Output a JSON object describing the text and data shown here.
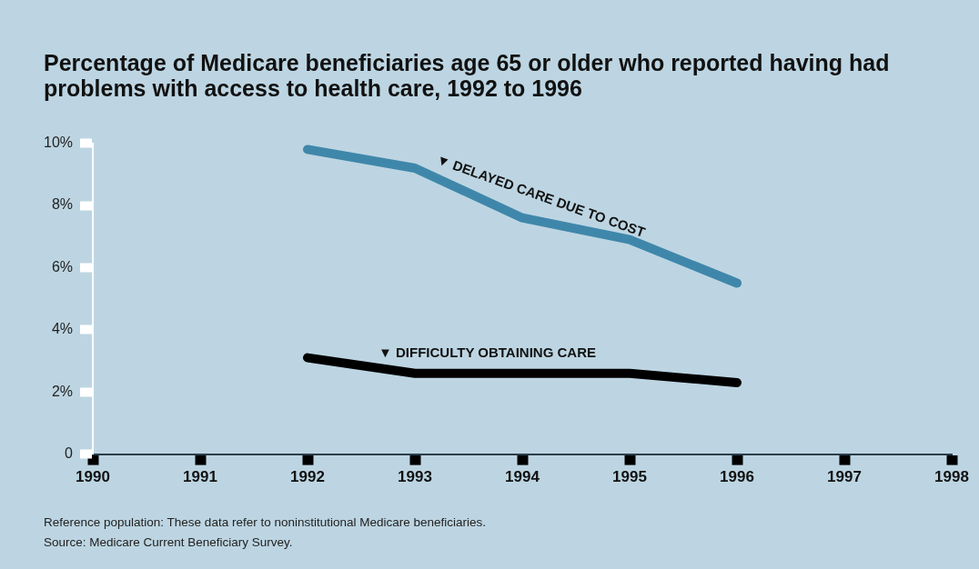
{
  "chart_data": {
    "type": "line",
    "title": "Percentage of Medicare beneficiaries age 65 or older who reported having had problems with access to health care, 1992 to 1996",
    "x": [
      1992,
      1993,
      1994,
      1995,
      1996
    ],
    "series": [
      {
        "name": "▼ DELAYED CARE DUE TO COST",
        "color": "#3f87aa",
        "values": [
          9.8,
          9.2,
          7.6,
          6.9,
          5.5
        ]
      },
      {
        "name": "▼ DIFFICULTY OBTAINING CARE",
        "color": "#000000",
        "values": [
          3.1,
          2.6,
          2.6,
          2.6,
          2.3
        ]
      }
    ],
    "xlim": [
      1990,
      1998
    ],
    "xticks": [
      1990,
      1991,
      1992,
      1993,
      1994,
      1995,
      1996,
      1997,
      1998
    ],
    "ylim": [
      0,
      10
    ],
    "yticks": [
      0,
      {
        "value": 2,
        "label": "2%"
      },
      {
        "value": 4,
        "label": "4%"
      },
      {
        "value": 6,
        "label": "6%"
      },
      {
        "value": 8,
        "label": "8%"
      },
      {
        "value": 10,
        "label": "10%"
      }
    ],
    "legend": false,
    "marker": "none",
    "line_style": "solid",
    "annotations": [
      "Reference population: These data refer to noninstitutional Medicare beneficiaries.",
      "Source: Medicare Current Beneficiary Survey."
    ]
  }
}
